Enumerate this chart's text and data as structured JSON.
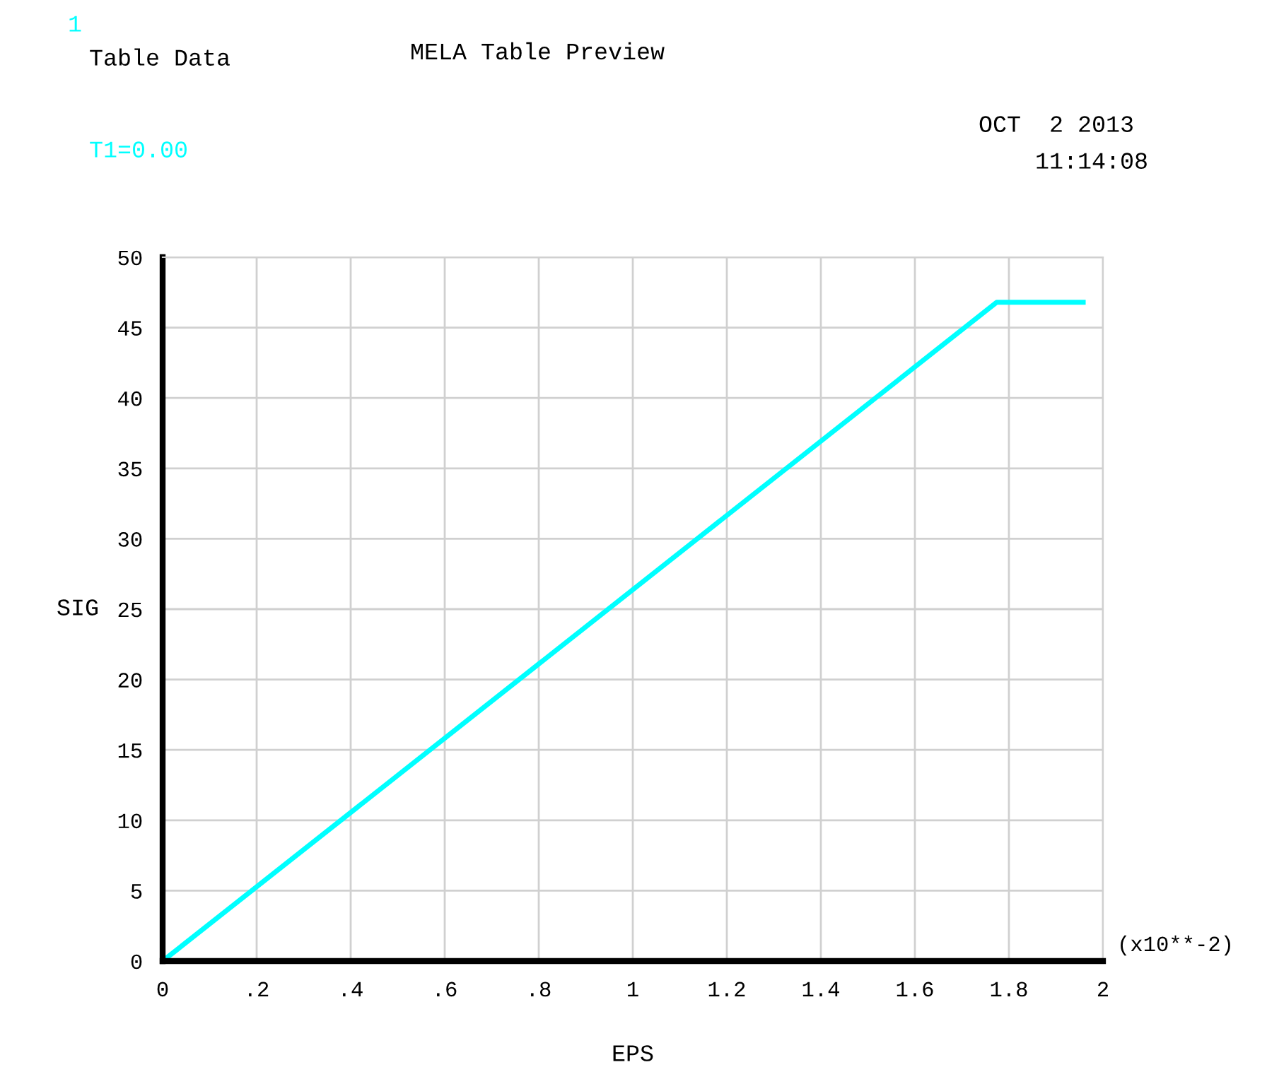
{
  "chart_data": {
    "type": "line",
    "title": "MELA Table Preview",
    "xlabel": "EPS",
    "ylabel": "SIG",
    "annotations": [
      "1",
      "Table Data",
      "T1=0.00",
      "OCT  2 2013",
      "11:14:08",
      "(x10**-2)"
    ],
    "x": [
      0,
      1.774,
      1.958
    ],
    "series": [
      {
        "color": "#00ffff",
        "values": [
          0,
          46.8,
          46.8
        ]
      }
    ],
    "xlim": [
      0,
      2
    ],
    "ylim": [
      0,
      50
    ],
    "xticks": [
      0,
      {
        "value": 0.2,
        "label": ".2"
      },
      {
        "value": 0.4,
        "label": ".4"
      },
      {
        "value": 0.6,
        "label": ".6"
      },
      {
        "value": 0.8,
        "label": ".8"
      },
      1,
      1.2,
      1.4,
      1.6,
      1.8,
      2
    ],
    "yticks": [
      0,
      5,
      10,
      15,
      20,
      25,
      30,
      35,
      40,
      45,
      50
    ],
    "grid": true,
    "marker": "none",
    "line_style": "solid"
  }
}
